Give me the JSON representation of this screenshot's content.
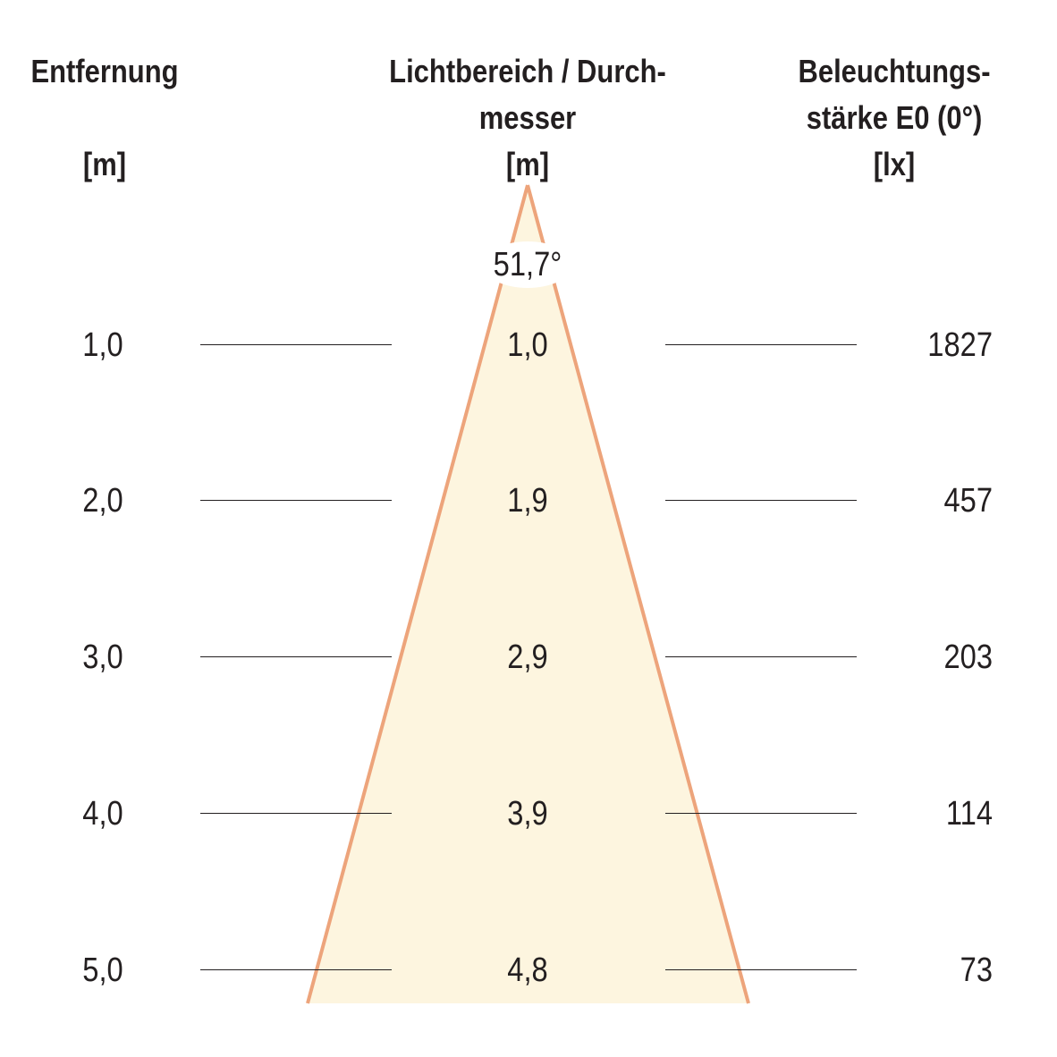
{
  "headers": {
    "distance": [
      "Entfernung",
      "",
      "[m]"
    ],
    "diameter": [
      "Lichtbereich / Durch-",
      "messer",
      "[m]"
    ],
    "illuminance": [
      "Beleuchtungs-",
      "stärke E0 (0°)",
      "[lx]"
    ]
  },
  "beam_angle": "51,7°",
  "rows": [
    {
      "distance": "1,0",
      "diameter": "1,0",
      "illuminance": "1827"
    },
    {
      "distance": "2,0",
      "diameter": "1,9",
      "illuminance": "457"
    },
    {
      "distance": "3,0",
      "diameter": "2,9",
      "illuminance": "203"
    },
    {
      "distance": "4,0",
      "diameter": "3,9",
      "illuminance": "114"
    },
    {
      "distance": "5,0",
      "diameter": "4,8",
      "illuminance": "73"
    }
  ],
  "colors": {
    "cone_fill": "#fdf5df",
    "cone_edge": "#eda47b",
    "text": "#231f20"
  }
}
